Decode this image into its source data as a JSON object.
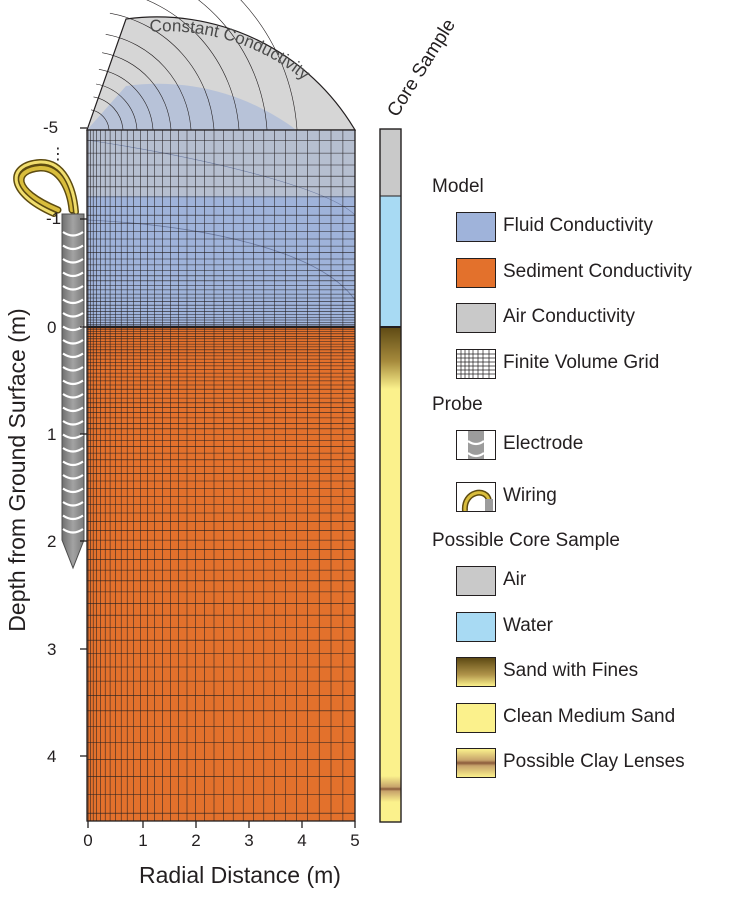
{
  "axes": {
    "xlabel": "Radial Distance (m)",
    "ylabel": "Depth from Ground Surface (m)",
    "x_ticks": [
      "0",
      "1",
      "2",
      "3",
      "4",
      "5"
    ],
    "y_ticks": [
      "-5",
      "-1",
      "0",
      "1",
      "2",
      "3",
      "4"
    ],
    "ellipsis": "⋮"
  },
  "dome_label": "Constant Conductivity",
  "core_title": "Core Sample",
  "colors": {
    "fluid": "#9fb3da",
    "sediment": "#e3712c",
    "air": "#c9c9c9",
    "water": "#a8daf3",
    "clean_sand": "#fbf18c",
    "sand_fines_top": "#6a5418",
    "clay": "#8a5a3a",
    "electrode": "#9c9c9c",
    "wiring": "#b99a22"
  },
  "legend": {
    "model_heading": "Model",
    "model_items": [
      {
        "label": "Fluid Conductivity",
        "icon": "fluid-swatch"
      },
      {
        "label": "Sediment Conductivity",
        "icon": "sediment-swatch"
      },
      {
        "label": "Air Conductivity",
        "icon": "air-swatch"
      },
      {
        "label": "Finite Volume Grid",
        "icon": "grid-swatch"
      }
    ],
    "probe_heading": "Probe",
    "probe_items": [
      {
        "label": "Electrode",
        "icon": "electrode-icon"
      },
      {
        "label": "Wiring",
        "icon": "wiring-icon"
      }
    ],
    "core_heading": "Possible Core Sample",
    "core_items": [
      {
        "label": "Air",
        "icon": "air-swatch"
      },
      {
        "label": "Water",
        "icon": "water-swatch"
      },
      {
        "label": "Sand with Fines",
        "icon": "sand-fines-swatch"
      },
      {
        "label": "Clean Medium Sand",
        "icon": "clean-sand-swatch"
      },
      {
        "label": "Possible Clay Lenses",
        "icon": "clay-lens-swatch"
      }
    ]
  }
}
